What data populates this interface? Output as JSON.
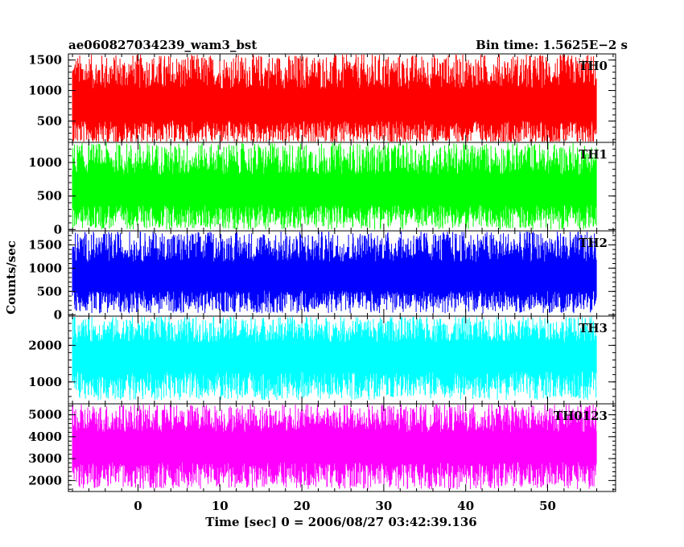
{
  "header": {
    "title": "ae060827034239_wam3_bst",
    "bin_time": "Bin time: 1.5625E−2 s"
  },
  "chart_data": {
    "type": "line",
    "ylabel": "Counts/sec",
    "xlabel": "Time [sec] 0 = 2006/08/27 03:42:39.136",
    "xlim": [
      -8.5,
      58.3
    ],
    "x_ticks": [
      0,
      10,
      20,
      30,
      40,
      50
    ],
    "x_range_data": [
      -8.0,
      56.0
    ],
    "bin_time_s": 0.015625,
    "panels": [
      {
        "name": "TH0",
        "color": "#ff0000",
        "ylim": [
          150,
          1600
        ],
        "yticks": [
          500,
          1000,
          1500
        ],
        "mean": 720,
        "noise_low": 100,
        "noise_high": 1600
      },
      {
        "name": "TH1",
        "color": "#00ff00",
        "ylim": [
          -20,
          1300
        ],
        "yticks": [
          0,
          500,
          1000
        ],
        "mean": 560,
        "noise_low": 0,
        "noise_high": 1300
      },
      {
        "name": "TH2",
        "color": "#0000ff",
        "ylim": [
          -30,
          1800
        ],
        "yticks": [
          0,
          500,
          1000,
          1500
        ],
        "mean": 780,
        "noise_low": 30,
        "noise_high": 1800
      },
      {
        "name": "TH3",
        "color": "#00ffff",
        "ylim": [
          400,
          2800
        ],
        "yticks": [
          1000,
          2000
        ],
        "mean": 1700,
        "noise_low": 500,
        "noise_high": 2800
      },
      {
        "name": "TH0123",
        "color": "#ff00ff",
        "ylim": [
          1500,
          5500
        ],
        "yticks": [
          2000,
          3000,
          4000,
          5000
        ],
        "mean": 3500,
        "noise_low": 1600,
        "noise_high": 5500
      }
    ]
  }
}
